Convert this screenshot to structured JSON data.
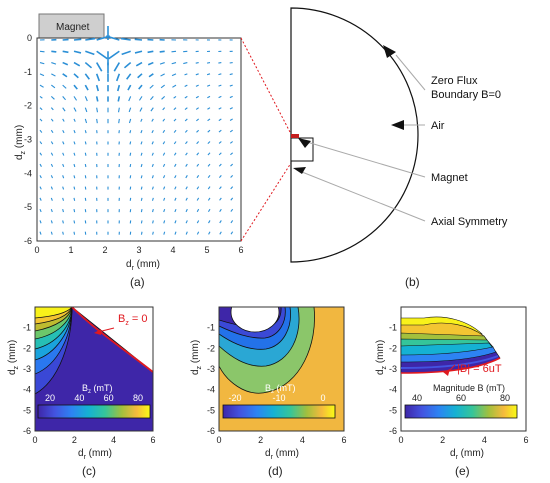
{
  "panel_a": {
    "magnet_label": "Magnet",
    "x_ticks": [
      "0",
      "1",
      "2",
      "3",
      "4",
      "5",
      "6"
    ],
    "y_ticks": [
      "0",
      "-1",
      "-2",
      "-3",
      "-4",
      "-5",
      "-6"
    ],
    "x_label_main": "d",
    "x_label_sub": "r",
    "x_label_unit": " (mm)",
    "y_label_main": "d",
    "y_label_sub": "z",
    "y_label_unit": " (mm)",
    "panel_label": "(a)",
    "arrow_color": "#2b8fd6"
  },
  "panel_b": {
    "callouts": [
      "Zero Flux",
      "Boundary B=0",
      "Air",
      "Magnet",
      "Axial Symmetry"
    ],
    "panel_label": "(b)"
  },
  "panel_c": {
    "x_ticks": [
      "0",
      "2",
      "4",
      "6"
    ],
    "y_ticks": [
      "-1",
      "-2",
      "-3",
      "-4",
      "-5",
      "-6"
    ],
    "annotation_main": "B",
    "annotation_sub": "z",
    "annotation_rest": " = 0",
    "colorbar_title_main": "B",
    "colorbar_title_sub": "z",
    "colorbar_title_unit": " (mT)",
    "colorbar_ticks": [
      "20",
      "40",
      "60",
      "80"
    ],
    "x_label_main": "d",
    "x_label_sub": "r",
    "x_label_unit": " (mm)",
    "y_label_main": "d",
    "y_label_sub": "z",
    "y_label_unit": " (mm)",
    "panel_label": "(c)"
  },
  "panel_d": {
    "x_ticks": [
      "0",
      "2",
      "4",
      "6"
    ],
    "y_ticks": [
      "-1",
      "-2",
      "-3",
      "-4",
      "-5",
      "-6"
    ],
    "colorbar_title_main": "B",
    "colorbar_title_sub": "z",
    "colorbar_title_unit": " (mT)",
    "colorbar_ticks": [
      "-20",
      "-10",
      "0"
    ],
    "x_label_main": "d",
    "x_label_sub": "r",
    "x_label_unit": " (mm)",
    "y_label_main": "d",
    "y_label_sub": "z",
    "y_label_unit": " (mm)",
    "panel_label": "(d)"
  },
  "panel_e": {
    "x_ticks": [
      "0",
      "2",
      "4",
      "6"
    ],
    "y_ticks": [
      "-1",
      "-2",
      "-3",
      "-4",
      "-5",
      "-6"
    ],
    "annotation": "|B| = 6uT",
    "colorbar_title": "Magnitude B (mT)",
    "colorbar_ticks": [
      "40",
      "60",
      "80"
    ],
    "x_label_main": "d",
    "x_label_sub": "r",
    "x_label_unit": " (mm)",
    "y_label_main": "d",
    "y_label_sub": "z",
    "y_label_unit": " (mm)",
    "panel_label": "(e)"
  },
  "colors": {
    "boundary_red": "#e0191f",
    "field_orange": "#f1b740",
    "parula_dark": "#3e26a8"
  }
}
